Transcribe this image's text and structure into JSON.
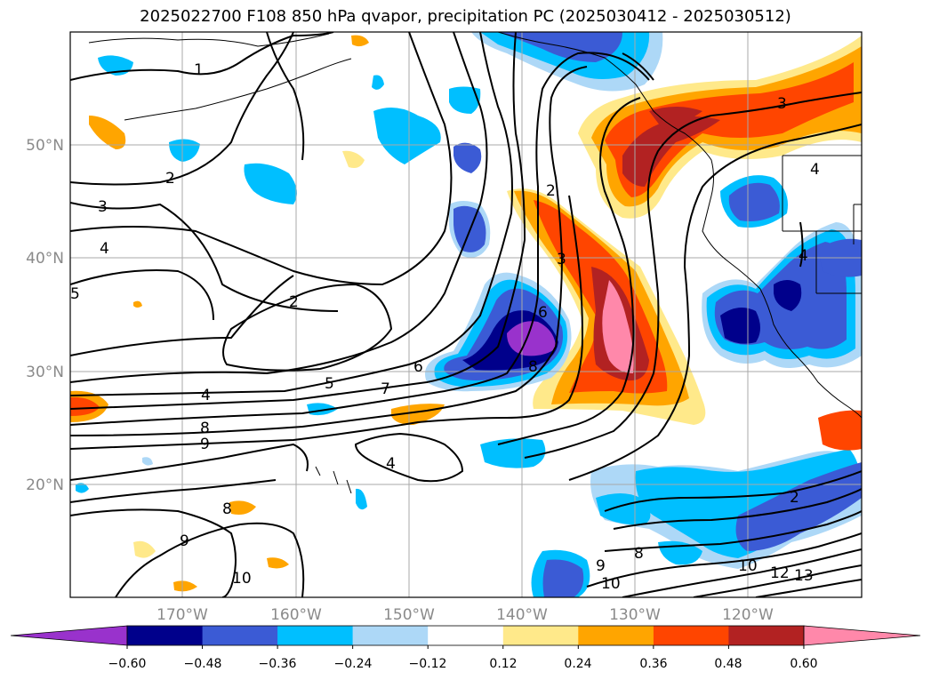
{
  "title": "2025022700 F108 850 hPa qvapor, precipitation PC (2025030412 - 2025030512)",
  "map": {
    "lat_labels": [
      "50°N",
      "40°N",
      "30°N",
      "20°N"
    ],
    "lon_labels": [
      "170°W",
      "160°W",
      "150°W",
      "140°W",
      "130°W",
      "120°W"
    ],
    "contour_labels": [
      "1",
      "2",
      "3",
      "4",
      "5",
      "2",
      "4",
      "6",
      "6",
      "7",
      "8",
      "9",
      "5",
      "4",
      "8",
      "8",
      "9",
      "10",
      "3",
      "2",
      "3",
      "4",
      "4",
      "9",
      "10",
      "8",
      "10",
      "12",
      "13",
      "2"
    ]
  },
  "colorbar": {
    "colors": [
      "#9932cc",
      "#00008b",
      "#3b5bd5",
      "#00bfff",
      "#add8f7",
      "#ffffff",
      "#ffe98a",
      "#ffa500",
      "#ff4500",
      "#b22222",
      "#ff88aa"
    ],
    "tick_labels": [
      "−0.60",
      "−0.48",
      "−0.36",
      "−0.24",
      "−0.12",
      "0.12",
      "0.24",
      "0.36",
      "0.48",
      "0.60"
    ]
  }
}
